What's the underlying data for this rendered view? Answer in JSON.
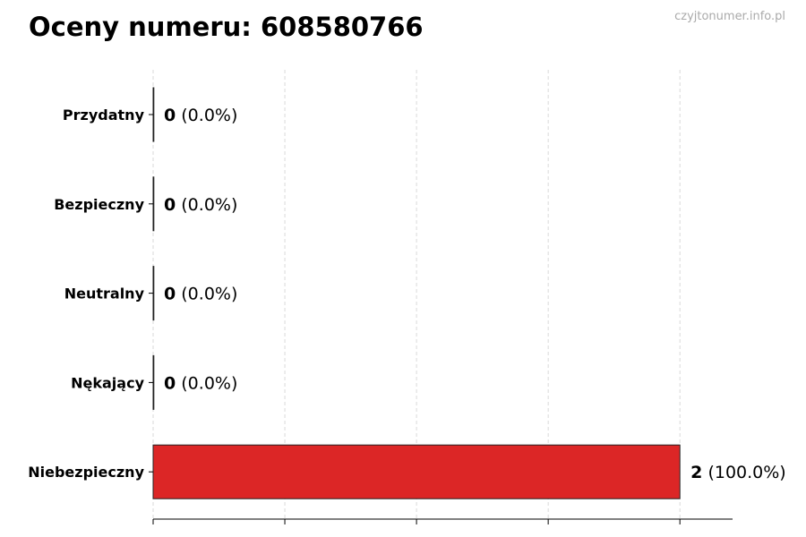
{
  "watermark": "czyjtonumer.info.pl",
  "chart_data": {
    "type": "bar",
    "orientation": "horizontal",
    "title": "Oceny numeru: 608580766",
    "categories": [
      "Przydatny",
      "Bezpieczny",
      "Neutralny",
      "Nękający",
      "Niebezpieczny"
    ],
    "values": [
      0,
      0,
      0,
      0,
      2
    ],
    "labels": [
      "0",
      "0",
      "0",
      "0",
      "2"
    ],
    "percent_labels": [
      "(0.0%)",
      "(0.0%)",
      "(0.0%)",
      "(0.0%)",
      "(100.0%)"
    ],
    "colors": [
      "#22a35a",
      "#3b82f6",
      "#9ca3af",
      "#f59e0b",
      "#dc2626"
    ],
    "xlim": [
      0,
      2.2
    ],
    "xticks": [
      0,
      0.5,
      1,
      1.5,
      2
    ],
    "xtick_labels_shown": false,
    "grid": "vertical dashed",
    "xlabel": "",
    "ylabel": ""
  }
}
